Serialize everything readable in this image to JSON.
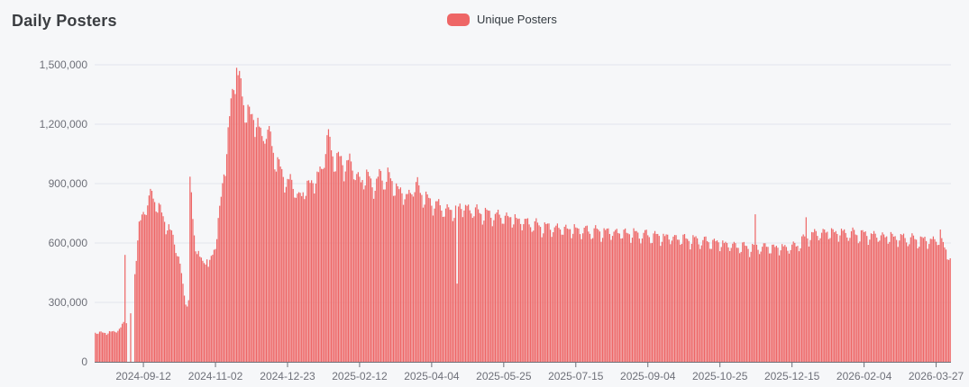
{
  "page": {
    "background_color": "#f6f7f9"
  },
  "header": {
    "title": "Daily Posters"
  },
  "legend": {
    "label": "Unique Posters",
    "swatch_color": "#ee6666"
  },
  "chart_data": {
    "type": "bar",
    "title": "Daily Posters",
    "series_name": "Unique Posters",
    "bar_color": "#ee6666",
    "grid_color": "#e3e6ed",
    "axis_color": "#6E7079",
    "label_color": "#6e7079",
    "grid_on": true,
    "legend_position": "top-center",
    "ylim": [
      0,
      1500000
    ],
    "y_ticks": [
      {
        "value": 1500000,
        "label": "1,500,000"
      },
      {
        "value": 1200000,
        "label": "1,200,000"
      },
      {
        "value": 900000,
        "label": "900,000"
      },
      {
        "value": 600000,
        "label": "600,000"
      },
      {
        "value": 300000,
        "label": "300,000"
      },
      {
        "value": 0,
        "label": "0"
      }
    ],
    "x_ticks": [
      {
        "day": 34,
        "label": "2024-09-12"
      },
      {
        "day": 85,
        "label": "2024-11-02"
      },
      {
        "day": 136,
        "label": "2024-12-23"
      },
      {
        "day": 187,
        "label": "2025-02-12"
      },
      {
        "day": 238,
        "label": "2025-04-04"
      },
      {
        "day": 289,
        "label": "2025-05-25"
      },
      {
        "day": 340,
        "label": "2025-07-15"
      },
      {
        "day": 391,
        "label": "2025-09-04"
      },
      {
        "day": 442,
        "label": "2025-10-25"
      },
      {
        "day": 493,
        "label": "2025-12-15"
      },
      {
        "day": 544,
        "label": "2026-02-04"
      },
      {
        "day": 595,
        "label": "2026-03-27"
      }
    ],
    "start_date": "2024-08-09",
    "end_date": "2026-04-06",
    "num_days": 606,
    "x_unit": "day",
    "start_weekday_index_mon0": 4,
    "weekly_multipliers_mon_to_sun": [
      1.0,
      1.005,
      1.0,
      0.985,
      0.965,
      0.915,
      0.94
    ],
    "jitter": {
      "a1": 0.013,
      "f1": 2.1,
      "a2": 0.009,
      "f2": 0.73
    },
    "envelope_anchors": [
      [
        0,
        152000
      ],
      [
        6,
        150000
      ],
      [
        12,
        153000
      ],
      [
        18,
        172000
      ],
      [
        20,
        205000
      ],
      [
        28,
        450000
      ],
      [
        29,
        560000
      ],
      [
        30,
        650000
      ],
      [
        31,
        705000
      ],
      [
        33,
        748000
      ],
      [
        35,
        778000
      ],
      [
        37,
        825000
      ],
      [
        39,
        868000
      ],
      [
        41,
        855000
      ],
      [
        43,
        822000
      ],
      [
        45,
        792000
      ],
      [
        47,
        762000
      ],
      [
        49,
        732000
      ],
      [
        51,
        706000
      ],
      [
        53,
        668000
      ],
      [
        55,
        642000
      ],
      [
        57,
        602000
      ],
      [
        58,
        568000
      ],
      [
        59,
        542000
      ],
      [
        60,
        492000
      ],
      [
        61,
        442000
      ],
      [
        62,
        402000
      ],
      [
        63,
        342000
      ],
      [
        64,
        312000
      ],
      [
        65,
        302000
      ],
      [
        66,
        312000
      ],
      [
        68,
        872000
      ],
      [
        69,
        728000
      ],
      [
        70,
        652000
      ],
      [
        71,
        612000
      ],
      [
        72,
        572000
      ],
      [
        74,
        538000
      ],
      [
        76,
        518000
      ],
      [
        78,
        532000
      ],
      [
        79,
        542000
      ],
      [
        80,
        482000
      ],
      [
        82,
        532000
      ],
      [
        84,
        588000
      ],
      [
        85,
        622000
      ],
      [
        86,
        668000
      ],
      [
        87,
        718000
      ],
      [
        88,
        772000
      ],
      [
        89,
        838000
      ],
      [
        90,
        908000
      ],
      [
        91,
        978000
      ],
      [
        92,
        1048000
      ],
      [
        93,
        1118000
      ],
      [
        94,
        1182000
      ],
      [
        95,
        1248000
      ],
      [
        96,
        1312000
      ],
      [
        97,
        1378000
      ],
      [
        98,
        1432000
      ],
      [
        99,
        1468000
      ],
      [
        101,
        1480000
      ],
      [
        102,
        1462000
      ],
      [
        103,
        1426000
      ],
      [
        104,
        1372000
      ],
      [
        105,
        1322000
      ],
      [
        106,
        1302000
      ],
      [
        108,
        1292000
      ],
      [
        110,
        1278000
      ],
      [
        112,
        1258000
      ],
      [
        114,
        1240000
      ],
      [
        116,
        1196000
      ],
      [
        118,
        1162000
      ],
      [
        120,
        1198000
      ],
      [
        122,
        1178000
      ],
      [
        124,
        1152000
      ],
      [
        126,
        1092000
      ],
      [
        128,
        1042000
      ],
      [
        130,
        1008000
      ],
      [
        132,
        972000
      ],
      [
        134,
        950000
      ],
      [
        136,
        928000
      ],
      [
        138,
        938000
      ],
      [
        140,
        908000
      ],
      [
        142,
        878000
      ],
      [
        144,
        852000
      ],
      [
        146,
        862000
      ],
      [
        148,
        888000
      ],
      [
        150,
        902000
      ],
      [
        152,
        922000
      ],
      [
        154,
        938000
      ],
      [
        156,
        942000
      ],
      [
        158,
        958000
      ],
      [
        160,
        992000
      ],
      [
        162,
        1068000
      ],
      [
        163,
        1118000
      ],
      [
        164,
        1155000
      ],
      [
        165,
        1148000
      ],
      [
        166,
        1125000
      ],
      [
        167,
        1092000
      ],
      [
        168,
        1065000
      ],
      [
        170,
        1045000
      ],
      [
        172,
        1055000
      ],
      [
        174,
        1035000
      ],
      [
        176,
        1005000
      ],
      [
        178,
        1025000
      ],
      [
        180,
        1045000
      ],
      [
        182,
        1005000
      ],
      [
        184,
        970000
      ],
      [
        186,
        948000
      ],
      [
        188,
        938000
      ],
      [
        190,
        948000
      ],
      [
        192,
        952000
      ],
      [
        194,
        950000
      ],
      [
        196,
        922000
      ],
      [
        198,
        908000
      ],
      [
        200,
        932000
      ],
      [
        202,
        978000
      ],
      [
        204,
        948000
      ],
      [
        206,
        922000
      ],
      [
        207,
        962000
      ],
      [
        209,
        942000
      ],
      [
        211,
        918000
      ],
      [
        213,
        898000
      ],
      [
        215,
        882000
      ],
      [
        217,
        876000
      ],
      [
        220,
        852000
      ],
      [
        223,
        872000
      ],
      [
        226,
        906000
      ],
      [
        228,
        916000
      ],
      [
        230,
        882000
      ],
      [
        232,
        856000
      ],
      [
        234,
        842000
      ],
      [
        236,
        832000
      ],
      [
        238,
        826000
      ],
      [
        241,
        814000
      ],
      [
        244,
        800000
      ],
      [
        247,
        790000
      ],
      [
        250,
        782000
      ],
      [
        253,
        776000
      ],
      [
        255,
        784000
      ],
      [
        258,
        802000
      ],
      [
        262,
        794000
      ],
      [
        266,
        786000
      ],
      [
        270,
        776000
      ],
      [
        275,
        766000
      ],
      [
        280,
        760000
      ],
      [
        285,
        754000
      ],
      [
        289,
        750000
      ],
      [
        294,
        742000
      ],
      [
        299,
        732000
      ],
      [
        304,
        722000
      ],
      [
        309,
        712000
      ],
      [
        314,
        702000
      ],
      [
        319,
        696000
      ],
      [
        330,
        688000
      ],
      [
        340,
        682000
      ],
      [
        350,
        676000
      ],
      [
        360,
        672000
      ],
      [
        370,
        668000
      ],
      [
        380,
        662000
      ],
      [
        391,
        654000
      ],
      [
        400,
        647000
      ],
      [
        410,
        640000
      ],
      [
        420,
        632000
      ],
      [
        430,
        624000
      ],
      [
        442,
        614000
      ],
      [
        450,
        602000
      ],
      [
        458,
        594000
      ],
      [
        464,
        590000
      ],
      [
        470,
        594000
      ],
      [
        477,
        592000
      ],
      [
        484,
        590000
      ],
      [
        491,
        591000
      ],
      [
        495,
        598000
      ],
      [
        498,
        612000
      ],
      [
        501,
        632000
      ],
      [
        506,
        654000
      ],
      [
        510,
        662000
      ],
      [
        515,
        667000
      ],
      [
        520,
        670000
      ],
      [
        528,
        666000
      ],
      [
        536,
        662000
      ],
      [
        544,
        657000
      ],
      [
        552,
        652000
      ],
      [
        560,
        647000
      ],
      [
        570,
        640000
      ],
      [
        580,
        632000
      ],
      [
        590,
        627000
      ],
      [
        596,
        631000
      ],
      [
        600,
        612000
      ],
      [
        602,
        582000
      ],
      [
        604,
        548000
      ],
      [
        605,
        512000
      ]
    ],
    "special_days": {
      "21": 540000,
      "22": 195000,
      "23": 0,
      "24": 0,
      "25": 245000,
      "26": 0,
      "27": 0,
      "67": 935000,
      "100": 1485000,
      "256": 395000,
      "467": 745000,
      "503": 730000,
      "598": 668000
    }
  }
}
